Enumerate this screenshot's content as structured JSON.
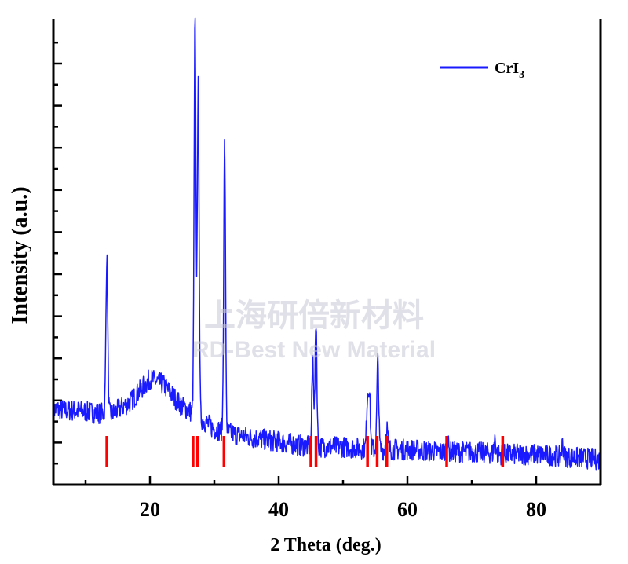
{
  "chart_data": {
    "type": "line",
    "xlabel": "2 Theta (deg.)",
    "ylabel": "Intensity (a.u.)",
    "xlim": [
      5,
      90
    ],
    "x_ticks": [
      20,
      40,
      60,
      80
    ],
    "y_ticks_shown": false,
    "grid": false,
    "legend": {
      "position": "top-right",
      "entries": [
        {
          "label": "CrI",
          "subscript": "3",
          "color": "#1a1aff"
        }
      ]
    },
    "series": [
      {
        "name": "CrI3",
        "color": "#1a1aff",
        "baseline": [
          [
            5,
            0.3
          ],
          [
            10,
            0.29
          ],
          [
            14,
            0.28
          ],
          [
            17,
            0.33
          ],
          [
            20,
            0.42
          ],
          [
            22,
            0.4
          ],
          [
            25,
            0.31
          ],
          [
            27,
            0.28
          ],
          [
            30,
            0.22
          ],
          [
            35,
            0.19
          ],
          [
            40,
            0.17
          ],
          [
            45,
            0.15
          ],
          [
            50,
            0.15
          ],
          [
            55,
            0.14
          ],
          [
            60,
            0.14
          ],
          [
            65,
            0.13
          ],
          [
            70,
            0.13
          ],
          [
            75,
            0.12
          ],
          [
            80,
            0.12
          ],
          [
            85,
            0.11
          ],
          [
            90,
            0.1
          ]
        ],
        "peaks": [
          {
            "x": 13.3,
            "height": 0.62
          },
          {
            "x": 27.0,
            "height": 1.56
          },
          {
            "x": 27.5,
            "height": 1.31
          },
          {
            "x": 31.6,
            "height": 1.15
          },
          {
            "x": 45.3,
            "height": 0.35
          },
          {
            "x": 45.8,
            "height": 0.5
          },
          {
            "x": 53.8,
            "height": 0.2
          },
          {
            "x": 54.1,
            "height": 0.22
          },
          {
            "x": 55.4,
            "height": 0.35
          },
          {
            "x": 56.8,
            "height": 0.09
          },
          {
            "x": 66.2,
            "height": 0.05
          },
          {
            "x": 73.6,
            "height": 0.06
          },
          {
            "x": 84.1,
            "height": 0.05
          }
        ]
      }
    ],
    "reference_lines": {
      "color": "#ff0000",
      "positions": [
        13.3,
        26.7,
        27.4,
        31.5,
        45.0,
        45.8,
        53.8,
        55.3,
        56.8,
        66.1,
        74.8
      ]
    }
  },
  "watermark": {
    "line1": "上海研倍新材料",
    "line2": "RD-Best New Material"
  }
}
